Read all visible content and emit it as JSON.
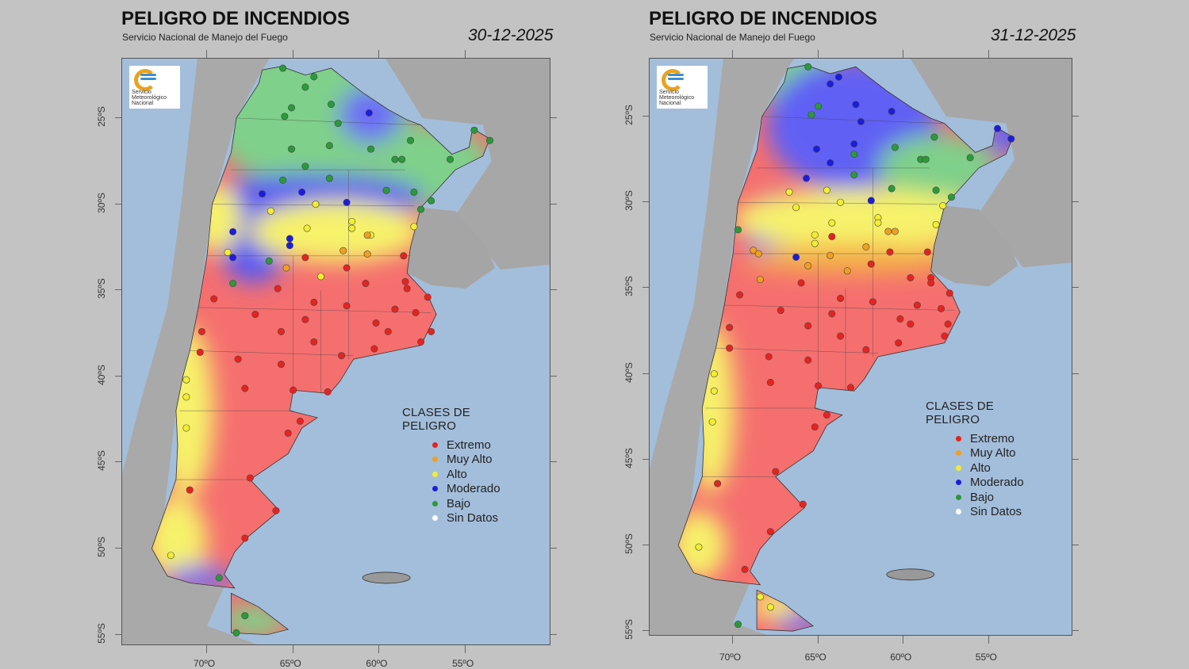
{
  "maps": [
    {
      "title": "PELIGRO DE INCENDIOS",
      "subtitle": "Servicio Nacional de Manejo del Fuego",
      "date": "30-12-2025",
      "logo_text": [
        "Servicio",
        "Meteorológico",
        "Nacional"
      ],
      "lat_labels": [
        "25ºS",
        "30ºS",
        "35ºS",
        "40ºS",
        "45ºS",
        "50ºS",
        "55ºS"
      ],
      "lon_labels": [
        "70ºO",
        "65ºO",
        "60ºO",
        "55ºO"
      ],
      "legend": {
        "title": "CLASES DE PELIGRO",
        "items": [
          {
            "label": "Extremo",
            "color": "#e8221e"
          },
          {
            "label": "Muy Alto",
            "color": "#f0a020"
          },
          {
            "label": "Alto",
            "color": "#f2ee30"
          },
          {
            "label": "Moderado",
            "color": "#1c1ce0"
          },
          {
            "label": "Bajo",
            "color": "#2a9a3a"
          },
          {
            "label": "Sin Datos",
            "color": "#ffffff"
          }
        ]
      },
      "stations": {
        "Bajo": [
          [
            -65.6,
            22.1
          ],
          [
            -64.3,
            23.2
          ],
          [
            -63.8,
            22.6
          ],
          [
            -65.1,
            24.4
          ],
          [
            -65.5,
            24.9
          ],
          [
            -62.8,
            24.2
          ],
          [
            -62.4,
            25.3
          ],
          [
            -65.1,
            26.8
          ],
          [
            -62.9,
            26.6
          ],
          [
            -64.3,
            27.8
          ],
          [
            -65.6,
            28.6
          ],
          [
            -60.5,
            26.8
          ],
          [
            -59.1,
            27.4
          ],
          [
            -58.2,
            26.3
          ],
          [
            -58.7,
            27.4
          ],
          [
            -58,
            29.3
          ],
          [
            -59.6,
            29.2
          ],
          [
            -57.6,
            30.3
          ],
          [
            -57,
            29.8
          ],
          [
            -55.9,
            27.4
          ],
          [
            -54.5,
            25.7
          ],
          [
            -53.6,
            26.3
          ],
          [
            -66.4,
            33.3
          ],
          [
            -68.5,
            34.6
          ],
          [
            -62.9,
            28.5
          ],
          [
            -69.3,
            51.7
          ],
          [
            -67.8,
            53.9
          ],
          [
            -68.3,
            54.9
          ]
        ],
        "Moderado": [
          [
            -60.6,
            24.7
          ],
          [
            -66.8,
            29.4
          ],
          [
            -64.5,
            29.3
          ],
          [
            -61.9,
            29.9
          ],
          [
            -68.5,
            31.6
          ],
          [
            -65.2,
            32
          ],
          [
            -65.2,
            32.4
          ],
          [
            -68.5,
            33.1
          ]
        ],
        "Alto": [
          [
            -66.3,
            30.4
          ],
          [
            -63.7,
            30
          ],
          [
            -61.6,
            31
          ],
          [
            -61.6,
            31.4
          ],
          [
            -64.2,
            31.4
          ],
          [
            -60.5,
            31.8
          ],
          [
            -58,
            31.3
          ],
          [
            -68.8,
            32.8
          ],
          [
            -63.4,
            34.2
          ],
          [
            -71.2,
            40.2
          ],
          [
            -71.2,
            41.2
          ],
          [
            -71.2,
            43
          ],
          [
            -72.1,
            50.4
          ]
        ],
        "Muy Alto": [
          [
            -60.7,
            31.8
          ],
          [
            -62.1,
            32.7
          ],
          [
            -60.7,
            32.9
          ],
          [
            -65.4,
            33.7
          ]
        ],
        "Extremo": [
          [
            -64.3,
            33.1
          ],
          [
            -61.9,
            33.7
          ],
          [
            -58.6,
            33
          ],
          [
            -60.8,
            34.6
          ],
          [
            -58.5,
            34.5
          ],
          [
            -58.4,
            34.9
          ],
          [
            -57.2,
            35.4
          ],
          [
            -65.9,
            34.9
          ],
          [
            -69.6,
            35.5
          ],
          [
            -63.8,
            35.7
          ],
          [
            -61.9,
            35.9
          ],
          [
            -59.1,
            36.1
          ],
          [
            -57.9,
            36.3
          ],
          [
            -67.2,
            36.4
          ],
          [
            -64.3,
            36.7
          ],
          [
            -65.7,
            37.4
          ],
          [
            -70.3,
            37.4
          ],
          [
            -60.2,
            36.9
          ],
          [
            -59.5,
            37.4
          ],
          [
            -57,
            37.4
          ],
          [
            -63.8,
            38
          ],
          [
            -62.2,
            38.8
          ],
          [
            -60.3,
            38.4
          ],
          [
            -57.6,
            38
          ],
          [
            -70.4,
            38.6
          ],
          [
            -68.2,
            39
          ],
          [
            -65.7,
            39.3
          ],
          [
            -67.8,
            40.7
          ],
          [
            -65,
            40.8
          ],
          [
            -63,
            40.9
          ],
          [
            -65.3,
            43.3
          ],
          [
            -64.6,
            42.6
          ],
          [
            -67.5,
            45.9
          ],
          [
            -71,
            46.6
          ],
          [
            -66,
            47.8
          ],
          [
            -67.8,
            49.4
          ]
        ]
      }
    },
    {
      "title": "PELIGRO DE INCENDIOS",
      "subtitle": "Servicio Nacional de Manejo del Fuego",
      "date": "31-12-2025",
      "logo_text": [
        "Servicio",
        "Meteorológico",
        "Nacional"
      ],
      "lat_labels": [
        "25ºS",
        "30ºS",
        "35ºS",
        "40ºS",
        "45ºS",
        "50ºS",
        "55ºS"
      ],
      "lon_labels": [
        "70ºO",
        "65ºO",
        "60ºO",
        "55ºO"
      ],
      "legend": {
        "title": "CLASES DE PELIGRO",
        "items": [
          {
            "label": "Extremo",
            "color": "#e8221e"
          },
          {
            "label": "Muy Alto",
            "color": "#f0a020"
          },
          {
            "label": "Alto",
            "color": "#f2ee30"
          },
          {
            "label": "Moderado",
            "color": "#1c1ce0"
          },
          {
            "label": "Bajo",
            "color": "#2a9a3a"
          },
          {
            "label": "Sin Datos",
            "color": "#ffffff"
          }
        ]
      },
      "stations": {
        "Bajo": [
          [
            -65.6,
            22.1
          ],
          [
            -65,
            24.4
          ],
          [
            -65.4,
            24.9
          ],
          [
            -62.9,
            27.2
          ],
          [
            -60.5,
            26.8
          ],
          [
            -59,
            27.5
          ],
          [
            -58.7,
            27.5
          ],
          [
            -58.2,
            26.2
          ],
          [
            -56.1,
            27.4
          ],
          [
            -62.9,
            28.4
          ],
          [
            -60.7,
            29.2
          ],
          [
            -58.1,
            29.3
          ],
          [
            -57.2,
            29.7
          ],
          [
            -69.7,
            31.6
          ],
          [
            -69.7,
            54.6
          ]
        ],
        "Moderado": [
          [
            -64.3,
            23.1
          ],
          [
            -63.8,
            22.7
          ],
          [
            -62.8,
            24.3
          ],
          [
            -62.5,
            25.3
          ],
          [
            -60.7,
            24.7
          ],
          [
            -65.1,
            26.9
          ],
          [
            -62.9,
            26.6
          ],
          [
            -64.3,
            27.7
          ],
          [
            -65.7,
            28.6
          ],
          [
            -61.9,
            29.9
          ],
          [
            -66.3,
            33.2
          ],
          [
            -54.5,
            25.7
          ],
          [
            -53.7,
            26.3
          ]
        ],
        "Alto": [
          [
            -66.7,
            29.4
          ],
          [
            -66.3,
            30.3
          ],
          [
            -64.5,
            29.3
          ],
          [
            -63.7,
            30
          ],
          [
            -61.5,
            30.9
          ],
          [
            -61.5,
            31.2
          ],
          [
            -64.2,
            31.2
          ],
          [
            -65.2,
            31.9
          ],
          [
            -65.2,
            32.4
          ],
          [
            -57.7,
            30.2
          ],
          [
            -58.1,
            31.3
          ],
          [
            -71.1,
            40
          ],
          [
            -71.1,
            41
          ],
          [
            -71.2,
            42.8
          ],
          [
            -72,
            50.1
          ],
          [
            -67.8,
            53.6
          ],
          [
            -68.4,
            53
          ]
        ],
        "Muy Alto": [
          [
            -60.9,
            31.7
          ],
          [
            -60.5,
            31.7
          ],
          [
            -68.8,
            32.8
          ],
          [
            -68.5,
            33
          ],
          [
            -65.6,
            33.7
          ],
          [
            -62.2,
            32.6
          ],
          [
            -63.3,
            34
          ],
          [
            -68.4,
            34.5
          ],
          [
            -64.3,
            33.1
          ]
        ],
        "Extremo": [
          [
            -64.2,
            32
          ],
          [
            -61.9,
            33.6
          ],
          [
            -60.8,
            32.9
          ],
          [
            -59.6,
            34.4
          ],
          [
            -58.6,
            32.9
          ],
          [
            -58.4,
            34.4
          ],
          [
            -58.4,
            34.7
          ],
          [
            -57.3,
            35.3
          ],
          [
            -66,
            34.7
          ],
          [
            -69.6,
            35.4
          ],
          [
            -63.7,
            35.6
          ],
          [
            -61.8,
            35.8
          ],
          [
            -59.2,
            36
          ],
          [
            -57.8,
            36.2
          ],
          [
            -67.2,
            36.3
          ],
          [
            -64.2,
            36.5
          ],
          [
            -65.6,
            37.2
          ],
          [
            -70.2,
            37.3
          ],
          [
            -60.2,
            36.8
          ],
          [
            -59.6,
            37.1
          ],
          [
            -57.4,
            37.1
          ],
          [
            -63.7,
            37.8
          ],
          [
            -62.2,
            38.6
          ],
          [
            -60.3,
            38.2
          ],
          [
            -57.6,
            37.8
          ],
          [
            -70.2,
            38.5
          ],
          [
            -67.9,
            39
          ],
          [
            -65.6,
            39.2
          ],
          [
            -67.8,
            40.5
          ],
          [
            -65,
            40.7
          ],
          [
            -63.1,
            40.8
          ],
          [
            -65.2,
            43.1
          ],
          [
            -64.5,
            42.4
          ],
          [
            -67.5,
            45.7
          ],
          [
            -70.9,
            46.4
          ],
          [
            -65.9,
            47.6
          ],
          [
            -67.8,
            49.2
          ],
          [
            -69.3,
            51.4
          ]
        ]
      }
    }
  ]
}
